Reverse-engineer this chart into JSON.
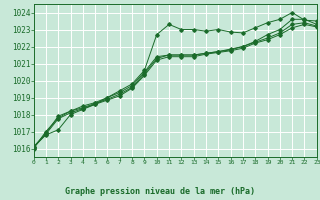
{
  "bg_color": "#c8e8d8",
  "grid_color": "#ffffff",
  "line_color": "#1a6b2a",
  "title": "Graphe pression niveau de la mer (hPa)",
  "xlim": [
    0,
    23
  ],
  "ylim": [
    1015.5,
    1024.5
  ],
  "yticks": [
    1016,
    1017,
    1018,
    1019,
    1020,
    1021,
    1022,
    1023,
    1024
  ],
  "xticks": [
    0,
    1,
    2,
    3,
    4,
    5,
    6,
    7,
    8,
    9,
    10,
    11,
    12,
    13,
    14,
    15,
    16,
    17,
    18,
    19,
    20,
    21,
    22,
    23
  ],
  "series": [
    [
      1016.1,
      1016.8,
      1017.1,
      1018.0,
      1018.3,
      1018.6,
      1019.0,
      1019.4,
      1019.8,
      1020.6,
      1022.7,
      1023.3,
      1023.0,
      1023.0,
      1022.9,
      1023.0,
      1022.85,
      1022.8,
      1023.1,
      1023.4,
      1023.6,
      1024.0,
      1023.55,
      1023.5
    ],
    [
      1016.0,
      1017.0,
      1017.8,
      1018.2,
      1018.5,
      1018.7,
      1019.0,
      1019.3,
      1019.7,
      1020.5,
      1021.4,
      1021.5,
      1021.5,
      1021.5,
      1021.6,
      1021.7,
      1021.8,
      1022.0,
      1022.3,
      1022.7,
      1023.0,
      1023.6,
      1023.6,
      1023.3
    ],
    [
      1016.1,
      1016.9,
      1017.9,
      1018.2,
      1018.4,
      1018.65,
      1018.9,
      1019.2,
      1019.6,
      1020.4,
      1021.3,
      1021.5,
      1021.5,
      1021.5,
      1021.6,
      1021.7,
      1021.85,
      1022.0,
      1022.25,
      1022.5,
      1022.8,
      1023.3,
      1023.4,
      1023.2
    ],
    [
      1016.05,
      1016.85,
      1017.75,
      1018.1,
      1018.35,
      1018.6,
      1018.85,
      1019.1,
      1019.55,
      1020.3,
      1021.2,
      1021.4,
      1021.4,
      1021.4,
      1021.55,
      1021.65,
      1021.75,
      1021.9,
      1022.2,
      1022.4,
      1022.7,
      1023.1,
      1023.3,
      1023.15
    ]
  ]
}
